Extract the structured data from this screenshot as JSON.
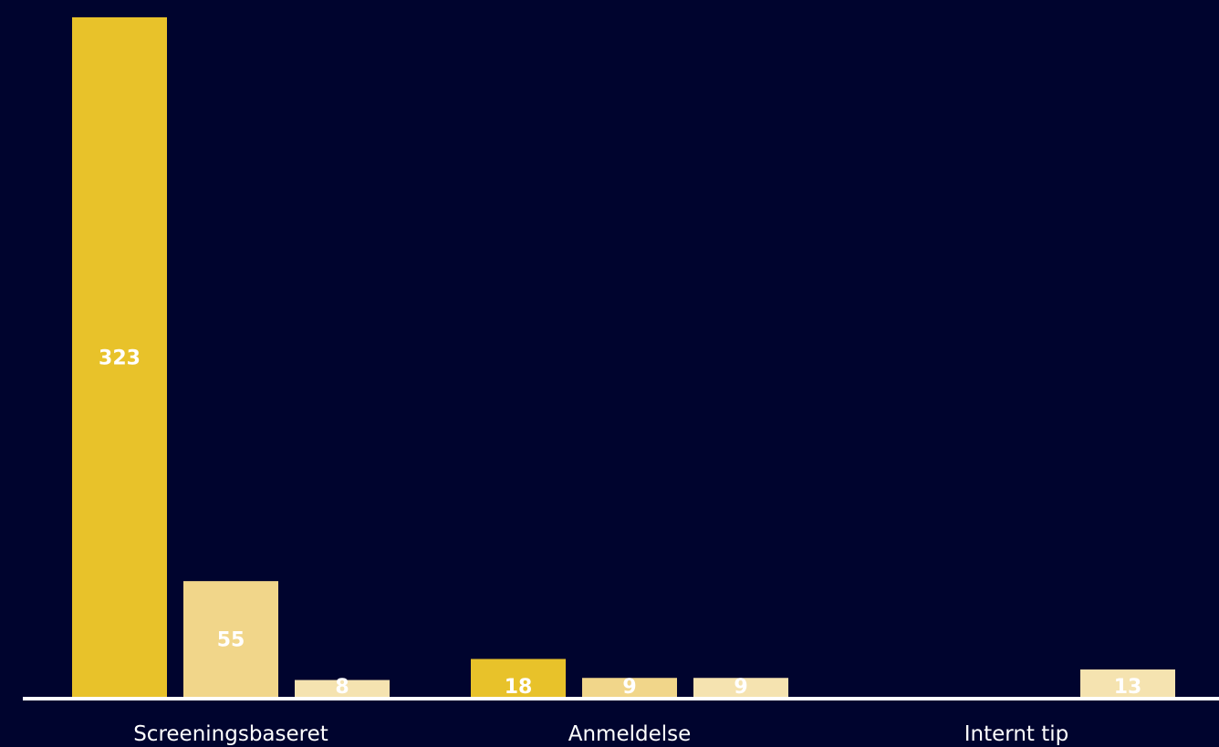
{
  "chart_data": {
    "type": "bar",
    "categories": [
      "Screeningsbaseret",
      "Anmeldelse",
      "Internt tip"
    ],
    "series": [
      {
        "color": "#e8c22a",
        "values": [
          323,
          18,
          null
        ]
      },
      {
        "color": "#f1d68a",
        "values": [
          55,
          9,
          null
        ]
      },
      {
        "color": "#f5e3b0",
        "values": [
          8,
          9,
          13
        ]
      }
    ],
    "ylim": [
      0,
      330
    ],
    "grid": false,
    "legend": "none",
    "axis_color": "#ffffff",
    "background": "#00042e"
  }
}
